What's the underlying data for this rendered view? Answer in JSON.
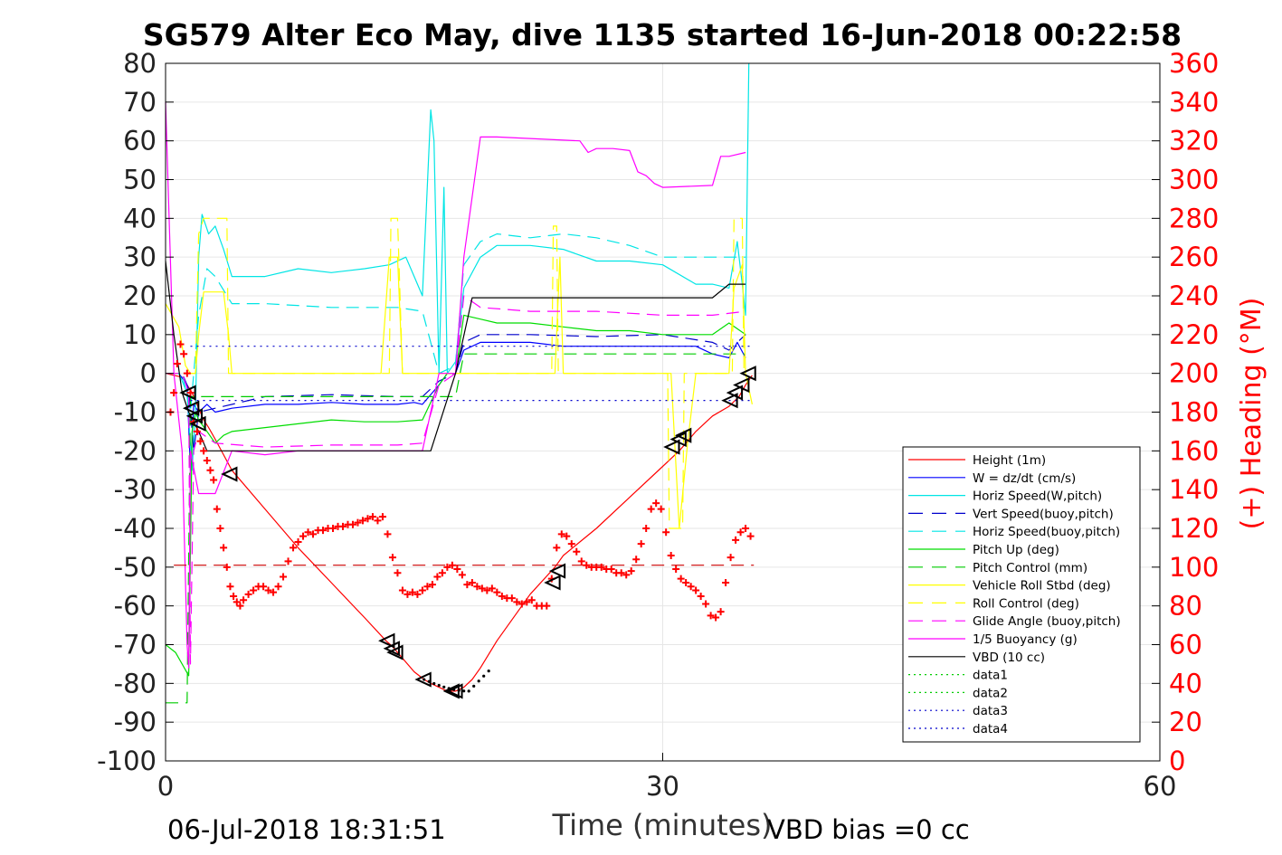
{
  "chart_data": {
    "type": "line",
    "title": "SG579 Alter Eco May, dive 1135 started 16-Jun-2018 00:22:58",
    "xlabel": "Time (minutes)",
    "ylabel_right": "(+) Heading (°M)",
    "footer_left": "06-Jul-2018 18:31:51",
    "footer_right": "VBD bias =0 cc",
    "xlim": [
      0,
      60
    ],
    "ylim": [
      -100,
      80
    ],
    "ylim_right": [
      0,
      360
    ],
    "x_ticks": [
      0,
      30,
      60
    ],
    "y_ticks": [
      80,
      70,
      60,
      50,
      40,
      30,
      20,
      10,
      0,
      -10,
      -20,
      -30,
      -40,
      -50,
      -60,
      -70,
      -80,
      -90,
      -100
    ],
    "y_ticks_right": [
      360,
      340,
      320,
      300,
      280,
      260,
      240,
      220,
      200,
      180,
      160,
      140,
      120,
      100,
      80,
      60,
      40,
      20,
      0
    ],
    "grid": true,
    "legend_position": "lower-right",
    "series": [
      {
        "name": "Height (1m)",
        "color": "#ff0000",
        "style": "solid",
        "x": [
          0.0,
          0.5,
          1.0,
          1.3,
          1.6,
          1.8,
          2.0,
          2.3,
          2.6,
          3,
          3.5,
          4,
          6,
          8,
          10,
          12,
          13.3,
          13.7,
          14,
          15,
          15.6,
          16,
          16.5,
          17,
          17.5,
          18,
          18.5,
          19,
          20,
          22,
          23.5,
          24,
          26,
          28,
          30,
          31,
          31.5,
          32,
          33,
          34,
          34.6,
          35.0,
          35.4
        ],
        "y": [
          0,
          -0.5,
          -1,
          -3,
          -5,
          -7,
          -9,
          -12,
          -14,
          -17,
          -21,
          -25,
          -35,
          -45,
          -54,
          -63,
          -69,
          -70.5,
          -72,
          -77,
          -79,
          -80,
          -81,
          -82,
          -82,
          -81,
          -79,
          -76,
          -69,
          -57,
          -50,
          -47,
          -40,
          -32,
          -24,
          -20,
          -17.5,
          -15,
          -11,
          -8.5,
          -6,
          -3,
          -0.5
        ]
      },
      {
        "name": "W = dz/dt (cm/s)",
        "color": "#0000ff",
        "style": "solid",
        "x": [
          0.0,
          0.8,
          1.3,
          1.5,
          1.7,
          2.0,
          2.5,
          3.0,
          4,
          6,
          8,
          10,
          12,
          14,
          15,
          15.5,
          16.5,
          17,
          17.5,
          18,
          19,
          20,
          22,
          24,
          26,
          28,
          30,
          32,
          33,
          34,
          34.5,
          35
        ],
        "y": [
          0,
          0,
          -3,
          -25,
          -8,
          -10,
          -8,
          -10,
          -9,
          -8,
          -8,
          -7.5,
          -8,
          -8,
          -7.5,
          -8,
          -3,
          0,
          0,
          6,
          8,
          8,
          8,
          7,
          7,
          7,
          7,
          7,
          5,
          4,
          8,
          4
        ]
      },
      {
        "name": "Horiz Speed(W,pitch)",
        "color": "#00e5e5",
        "style": "solid",
        "x": [
          0.0,
          0.8,
          1.3,
          1.6,
          1.8,
          2.0,
          2.2,
          2.6,
          3.0,
          3.5,
          4,
          6,
          8,
          10,
          12,
          13.5,
          14.5,
          15,
          15.5,
          16.0,
          16.2,
          16.5,
          16.8,
          17.0,
          17.5,
          18,
          19,
          20,
          22,
          24,
          26,
          28,
          30,
          32,
          33,
          34,
          34.5,
          34.8,
          35,
          35.2
        ],
        "y": [
          0,
          0,
          -5,
          -25,
          -10,
          30,
          41,
          36,
          38,
          32,
          25,
          25,
          27,
          26,
          27,
          28,
          30,
          25,
          20,
          68,
          60,
          0,
          48,
          0,
          3,
          22,
          30,
          33,
          33,
          32,
          29,
          29,
          28,
          23,
          23,
          22,
          34,
          23,
          15,
          80
        ]
      },
      {
        "name": "Vert Speed(buoy,pitch)",
        "color": "#0000cc",
        "style": "dashed",
        "x": [
          0.0,
          1.0,
          1.4,
          1.7,
          2.0,
          3,
          6,
          10,
          14,
          15.5,
          16.5,
          17.5,
          18,
          19,
          22,
          26,
          30,
          33,
          34,
          35
        ],
        "y": [
          0,
          0,
          -4,
          -20,
          -10,
          -9,
          -6,
          -5.5,
          -6,
          -6,
          -2,
          0,
          8,
          10,
          10,
          9.5,
          10,
          8,
          6,
          10
        ]
      },
      {
        "name": "Horiz Speed(buoy,pitch)",
        "color": "#00e5e5",
        "style": "dashed",
        "x": [
          0.0,
          1.0,
          1.5,
          2.0,
          2.5,
          3,
          4,
          6,
          10,
          14,
          15.5,
          16.5,
          17.5,
          18,
          19,
          20,
          22,
          24,
          26,
          28,
          30,
          32,
          34,
          35
        ],
        "y": [
          0,
          0,
          -10,
          15,
          27,
          25,
          18,
          18,
          17,
          17,
          16,
          0,
          2,
          28,
          34,
          36,
          35,
          36,
          35,
          33,
          30,
          30,
          30,
          30
        ]
      },
      {
        "name": "Pitch Up (deg)",
        "color": "#00dd00",
        "style": "solid",
        "x": [
          0.0,
          0.6,
          1.0,
          1.4,
          1.6,
          1.8,
          2.0,
          2.5,
          3,
          3.5,
          4,
          6,
          8,
          10,
          12,
          14,
          15.5,
          16.5,
          17,
          17.5,
          18,
          19,
          20,
          22,
          24,
          26,
          28,
          30,
          32,
          33,
          34,
          35
        ],
        "y": [
          -70,
          -72,
          -75,
          -78,
          -15,
          -10,
          -12,
          -15,
          -18,
          -16,
          -15,
          -14,
          -13,
          -12,
          -12.5,
          -12.5,
          -12,
          -3,
          0,
          0,
          15,
          14,
          13,
          13,
          12,
          11,
          11,
          10,
          10,
          10,
          13,
          10
        ]
      },
      {
        "name": "Pitch Control (mm)",
        "color": "#00cc00",
        "style": "dashed",
        "x": [
          0.0,
          1.2,
          1.3,
          1.5,
          16,
          17.5,
          18,
          35
        ],
        "y": [
          -85,
          -85,
          -85,
          -6,
          -6,
          -6,
          5,
          5
        ]
      },
      {
        "name": "Vehicle Roll Stbd (deg)",
        "color": "#ffff00",
        "style": "solid",
        "x": [
          0.0,
          0.8,
          1.2,
          1.5,
          1.8,
          2.0,
          2.3,
          3.5,
          3.8,
          4.0,
          6,
          10,
          13,
          13.5,
          14.0,
          14.3,
          15,
          16,
          17,
          17.5,
          18,
          22,
          23.5,
          23.8,
          24.0,
          28,
          30,
          30.5,
          31.0,
          31.5,
          32,
          34,
          34.3,
          34.8,
          35.0,
          35.4
        ],
        "y": [
          18,
          12,
          2,
          0,
          0,
          10,
          21,
          21,
          10,
          0,
          0,
          0,
          0,
          30,
          30,
          0,
          0,
          0,
          0,
          0,
          0,
          0,
          0,
          30,
          0,
          0,
          0,
          0,
          -40,
          -18,
          0,
          0,
          22,
          28,
          0,
          -8
        ]
      },
      {
        "name": "Roll Control (deg)",
        "color": "#ffff00",
        "style": "dashed",
        "x": [
          0.0,
          1.5,
          1.8,
          2.0,
          2.3,
          3.7,
          3.8,
          4.0,
          13.5,
          13.6,
          14.0,
          14.3,
          14.4,
          23.3,
          23.4,
          23.6,
          23.7,
          30.3,
          30.4,
          31.2,
          31.3,
          34.2,
          34.3,
          34.8,
          34.9
        ],
        "y": [
          0,
          0,
          0,
          36,
          40,
          40,
          0,
          0,
          0,
          40,
          40,
          0,
          0,
          0,
          38,
          38,
          0,
          0,
          -40,
          -40,
          0,
          0,
          40,
          40,
          0
        ]
      },
      {
        "name": "Glide Angle (buoy,pitch)",
        "color": "#ff00ff",
        "style": "dashed",
        "x": [
          0.0,
          1.0,
          1.4,
          1.5,
          1.7,
          2.0,
          3,
          6,
          10,
          14,
          15.5,
          16.5,
          17.5,
          18,
          19,
          22,
          26,
          30,
          33,
          35
        ],
        "y": [
          0,
          0,
          -5,
          -75,
          -20,
          -15,
          -18,
          -19,
          -18.5,
          -18.5,
          -18,
          -3,
          0,
          20,
          17,
          16,
          16,
          15,
          15,
          16
        ]
      },
      {
        "name": "1/5 Buoyancy (g)",
        "color": "#ff00ff",
        "style": "solid",
        "x": [
          0.0,
          0.5,
          1.0,
          1.3,
          1.4,
          1.5,
          2.0,
          3,
          4,
          6,
          8,
          10,
          14,
          15.5,
          16.5,
          17.5,
          18,
          19,
          20,
          25,
          25.5,
          26,
          27,
          28,
          28.5,
          29,
          29.5,
          30,
          33,
          33.5,
          34,
          35
        ],
        "y": [
          70,
          0,
          -20,
          -70,
          -76,
          -20,
          -31,
          -31,
          -20,
          -21,
          -20,
          -20,
          -20,
          -20,
          0,
          0,
          30,
          61,
          61,
          60,
          57,
          58,
          58,
          57.5,
          52,
          51,
          49,
          48,
          48.5,
          56,
          56,
          57
        ]
      },
      {
        "name": "VBD (10 cc)",
        "color": "#000000",
        "style": "solid",
        "x": [
          0.0,
          0.5,
          1.0,
          1.4,
          2.0,
          2.5,
          3,
          6,
          10,
          14,
          15.5,
          16.0,
          17.5,
          18.5,
          20,
          25,
          30,
          33,
          34,
          35
        ],
        "y": [
          29,
          10,
          -5,
          -10,
          -15,
          -20,
          -20,
          -20,
          -20,
          -20,
          -20,
          -20,
          0,
          19.5,
          19.5,
          19.5,
          19.5,
          19.5,
          23,
          23
        ]
      },
      {
        "name": "data1",
        "color": "#00cc00",
        "style": "dotted",
        "x": [],
        "y": []
      },
      {
        "name": "data2",
        "color": "#00cc00",
        "style": "dotted",
        "x": [],
        "y": []
      },
      {
        "name": "data3",
        "color": "#0000cc",
        "style": "dotted",
        "x": [
          1.5,
          35.5
        ],
        "y": [
          7,
          7
        ]
      },
      {
        "name": "data4",
        "color": "#0000cc",
        "style": "dotted",
        "x": [
          1.5,
          35.5
        ],
        "y": [
          -7,
          -7
        ]
      }
    ],
    "heading_reference": {
      "color": "#cc0000",
      "style": "dashed",
      "y_right": 101,
      "x": [
        0.5,
        35.5
      ]
    },
    "heading_points": {
      "color": "#ff0000",
      "marker": "+",
      "x": [
        0.3,
        0.5,
        0.7,
        0.9,
        1.1,
        1.3,
        1.5,
        1.7,
        1.9,
        2.1,
        2.3,
        2.5,
        2.7,
        2.9,
        3.1,
        3.3,
        3.5,
        3.7,
        3.9,
        4.1,
        4.3,
        4.5,
        4.7,
        5.0,
        5.3,
        5.6,
        5.9,
        6.2,
        6.5,
        6.8,
        7.1,
        7.4,
        7.7,
        8.0,
        8.3,
        8.6,
        8.9,
        9.2,
        9.5,
        9.8,
        10.1,
        10.4,
        10.7,
        11.0,
        11.3,
        11.6,
        11.9,
        12.2,
        12.5,
        12.8,
        13.1,
        13.4,
        13.7,
        14.0,
        14.3,
        14.6,
        14.9,
        15.2,
        15.5,
        15.8,
        16.1,
        16.4,
        16.7,
        17.0,
        17.3,
        17.6,
        17.9,
        18.2,
        18.5,
        18.8,
        19.1,
        19.4,
        19.7,
        20.0,
        20.3,
        20.6,
        20.9,
        21.2,
        21.5,
        21.8,
        22.1,
        22.4,
        22.7,
        23.0,
        23.3,
        23.6,
        23.9,
        24.2,
        24.5,
        24.8,
        25.1,
        25.4,
        25.7,
        26.0,
        26.3,
        26.6,
        26.9,
        27.2,
        27.5,
        27.8,
        28.1,
        28.4,
        28.7,
        29.0,
        29.3,
        29.6,
        29.9,
        30.2,
        30.5,
        30.8,
        31.1,
        31.4,
        31.7,
        32.0,
        32.3,
        32.6,
        32.9,
        33.2,
        33.5,
        33.8,
        34.1,
        34.4,
        34.7,
        35.0,
        35.3
      ],
      "y_right": [
        180,
        190,
        205,
        215,
        210,
        200,
        190,
        175,
        170,
        165,
        160,
        155,
        150,
        145,
        130,
        120,
        110,
        100,
        90,
        85,
        82,
        80,
        83,
        86,
        88,
        90,
        90,
        88,
        87,
        90,
        95,
        103,
        110,
        113,
        116,
        118,
        117,
        119,
        119,
        120,
        120,
        121,
        121,
        122,
        122,
        123,
        124,
        125,
        126,
        124,
        126,
        117,
        105,
        97,
        88,
        86,
        87,
        86,
        88,
        90,
        91,
        95,
        97,
        100,
        101,
        99,
        96,
        91,
        92,
        90,
        89,
        88,
        89,
        87,
        85,
        84,
        84,
        82,
        81,
        82,
        83,
        80,
        80,
        80,
        94,
        110,
        117,
        116,
        112,
        108,
        103,
        101,
        100,
        100,
        100,
        99,
        99,
        97,
        97,
        96,
        98,
        104,
        112,
        120,
        130,
        133,
        130,
        118,
        106,
        99,
        94,
        92,
        90,
        88,
        85,
        81,
        75,
        74,
        77,
        92,
        105,
        114,
        118,
        120,
        116
      ]
    },
    "apogee_markers": {
      "color": "#000000",
      "marker": "triangle",
      "x": [
        1.4,
        1.6,
        1.8,
        2.0,
        3.9,
        13.4,
        13.7,
        13.9,
        15.6,
        17.3,
        17.5,
        23.4,
        23.7,
        30.6,
        31.0,
        31.3,
        34.1,
        34.4,
        34.8,
        35.2
      ],
      "y": [
        -5,
        -9,
        -11,
        -13,
        -26,
        -69,
        -71,
        -72,
        -79,
        -82,
        -82,
        -54,
        -51,
        -19,
        -17,
        -16,
        -7,
        -5,
        -3,
        0
      ]
    }
  }
}
